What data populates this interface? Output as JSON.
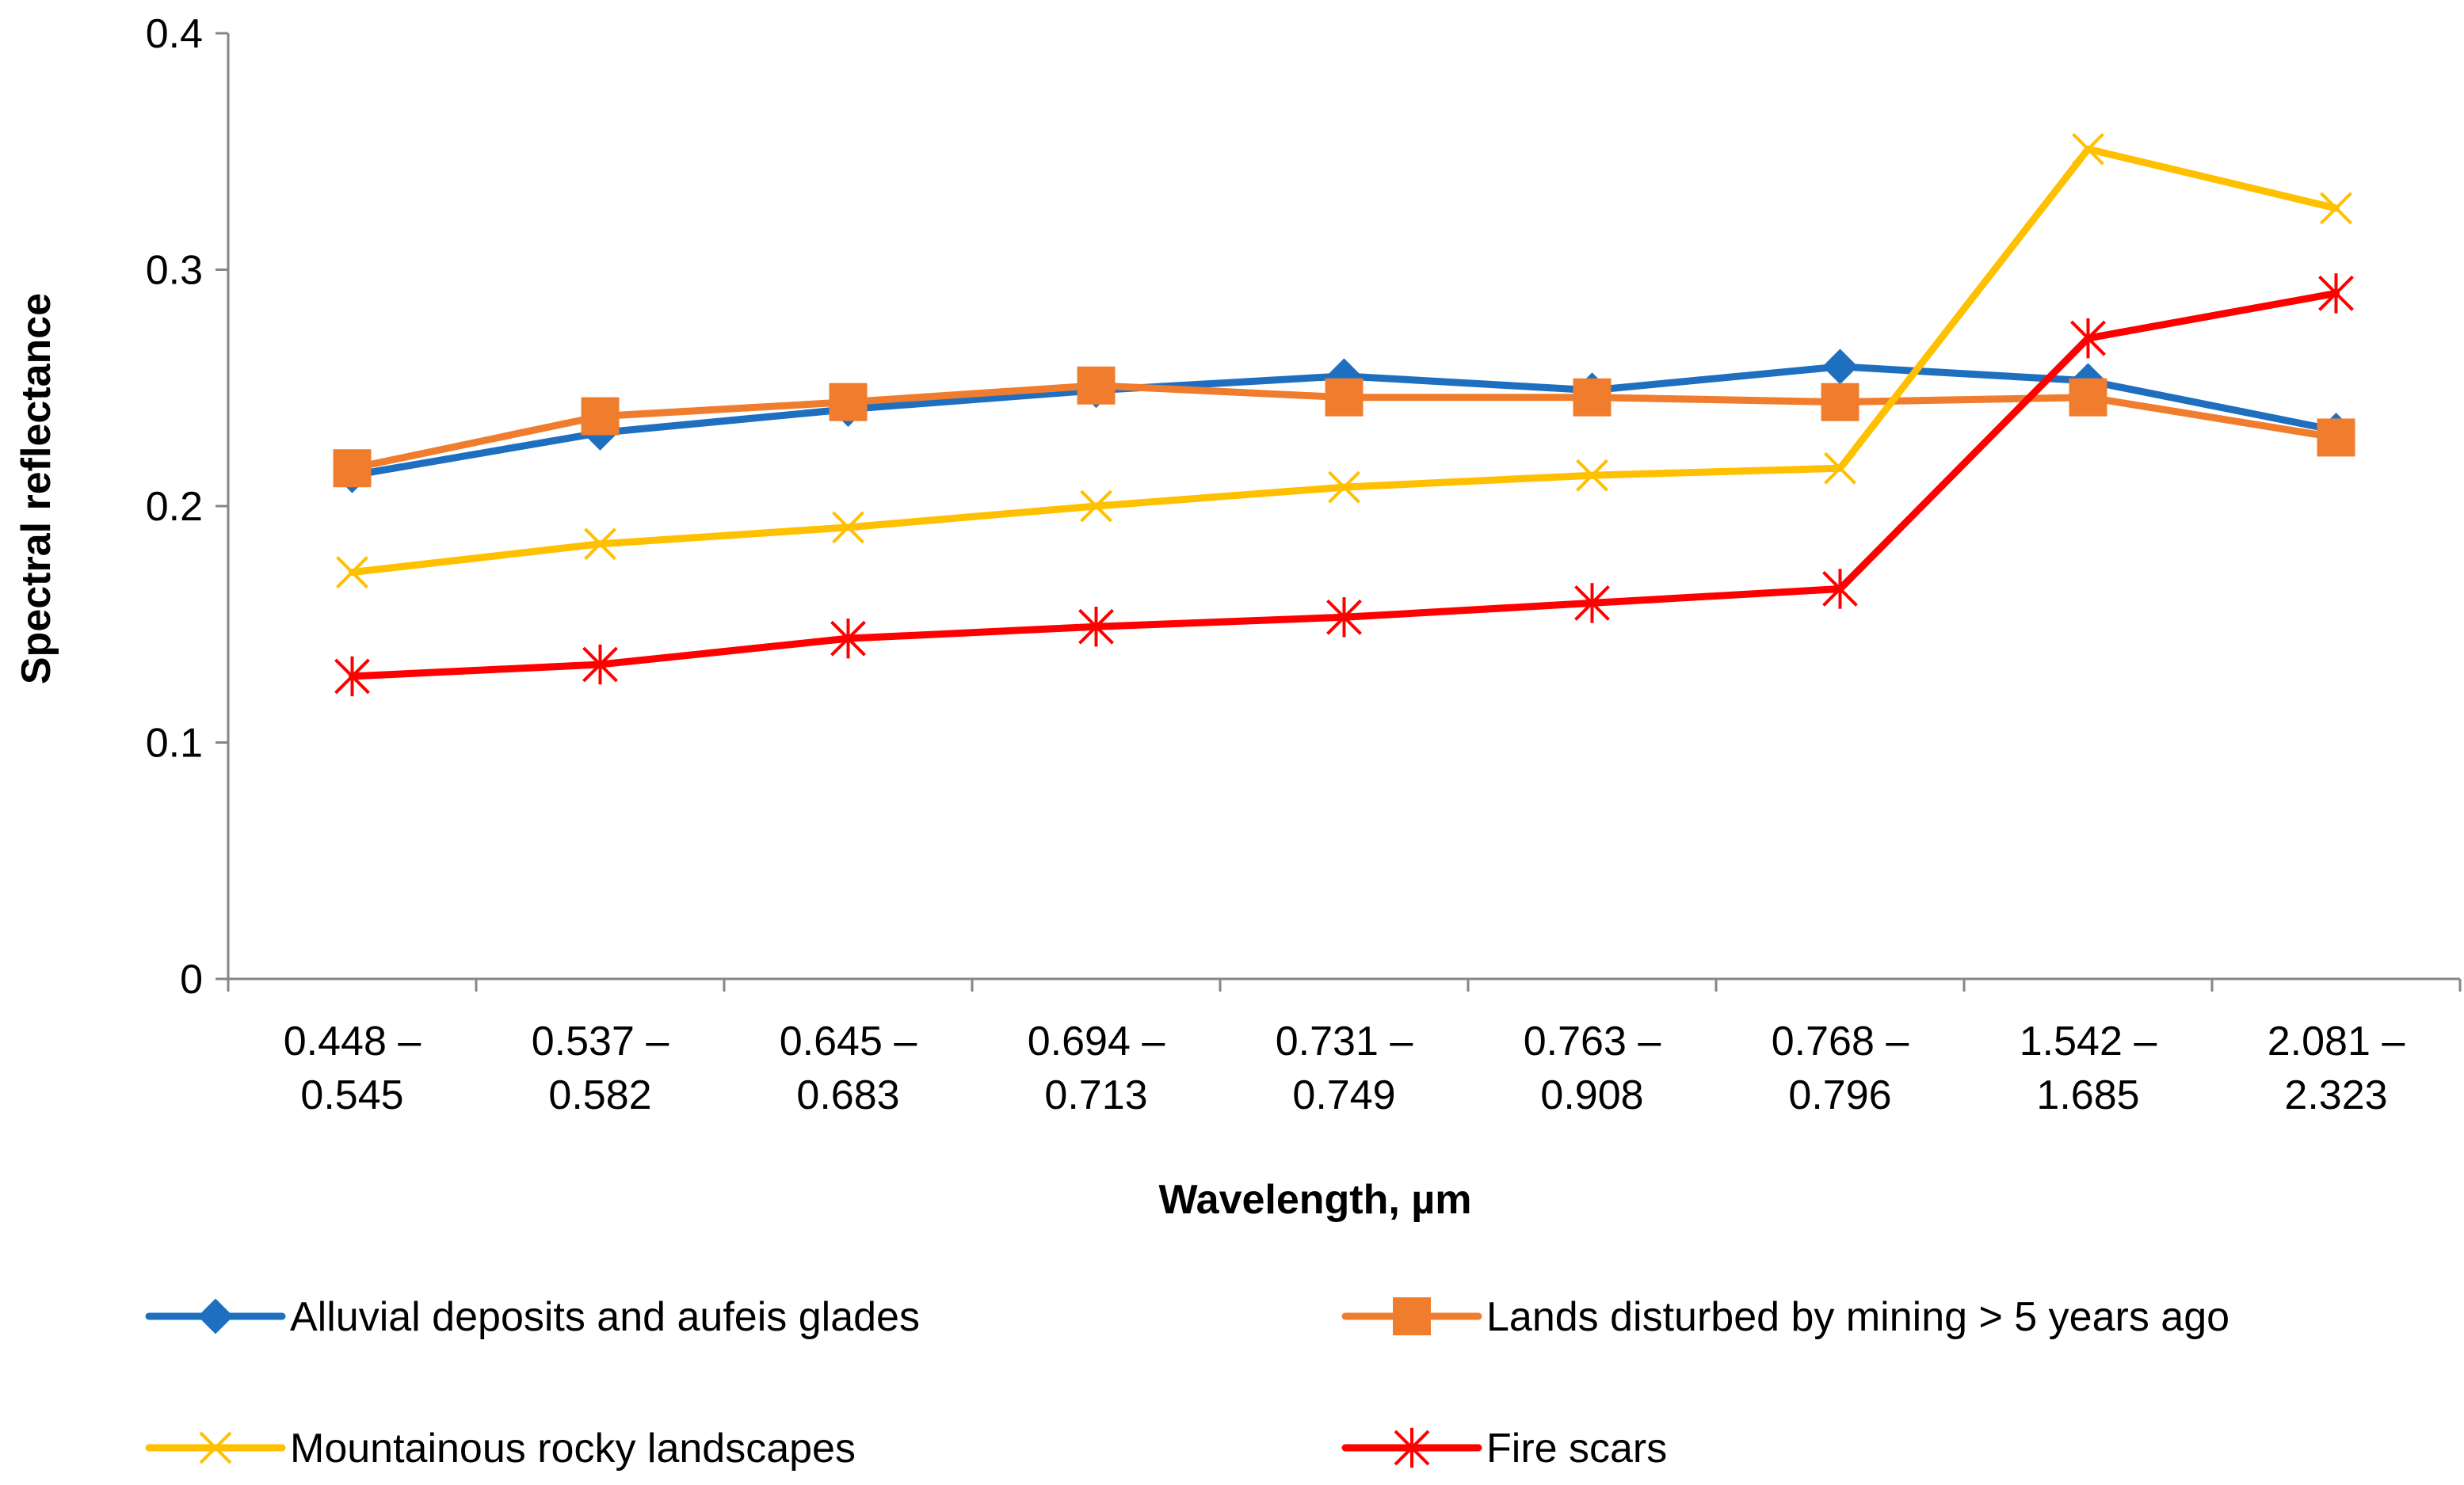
{
  "chart_data": {
    "type": "line",
    "title": "",
    "xlabel": "Wavelength, µm",
    "ylabel": "Spectral reflectance",
    "ylim": [
      0,
      0.4
    ],
    "yticks": [
      "0",
      "0.1",
      "0.2",
      "0.3",
      "0.4"
    ],
    "ytick_values": [
      0,
      0.1,
      0.2,
      0.3,
      0.4
    ],
    "grid": false,
    "legend_position": "bottom",
    "categories": [
      [
        "0.448 –",
        "0.545"
      ],
      [
        "0.537 –",
        "0.582"
      ],
      [
        "0.645 –",
        "0.683"
      ],
      [
        "0.694 –",
        "0.713"
      ],
      [
        "0.731 –",
        "0.749"
      ],
      [
        "0.763 –",
        "0.908"
      ],
      [
        "0.768 –",
        "0.796"
      ],
      [
        "1.542 –",
        "1.685"
      ],
      [
        "2.081 –",
        "2.323"
      ]
    ],
    "series": [
      {
        "name": "Alluvial deposits and aufeis glades",
        "color": "#1f6fc0",
        "marker": "diamond",
        "values": [
          0.213,
          0.231,
          0.241,
          0.249,
          0.255,
          0.249,
          0.259,
          0.253,
          0.232
        ]
      },
      {
        "name": "Lands disturbed by mining > 5 years ago",
        "color": "#f07d2d",
        "marker": "square",
        "values": [
          0.216,
          0.238,
          0.244,
          0.251,
          0.246,
          0.246,
          0.244,
          0.246,
          0.229
        ]
      },
      {
        "name": "Mountainous rocky landscapes",
        "color": "#ffc000",
        "marker": "x",
        "values": [
          0.172,
          0.184,
          0.191,
          0.2,
          0.208,
          0.213,
          0.216,
          0.351,
          0.326
        ]
      },
      {
        "name": "Fire scars",
        "color": "#ff0000",
        "marker": "star",
        "values": [
          0.128,
          0.133,
          0.144,
          0.149,
          0.153,
          0.159,
          0.165,
          0.271,
          0.29
        ]
      }
    ]
  }
}
